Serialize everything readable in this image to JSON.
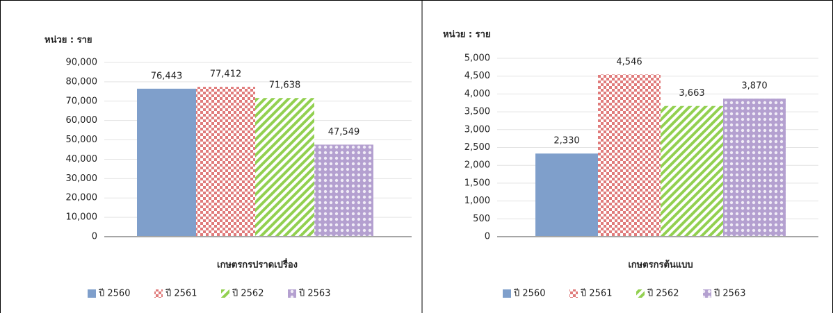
{
  "chart_data": [
    {
      "type": "bar",
      "unit_label": "หน่วย : ราย",
      "categories": [
        "เกษตรกรปราดเปรื่อง"
      ],
      "series": [
        {
          "name": "ปี 2560",
          "color": "#7f9fcb",
          "values": [
            76443
          ],
          "value_labels": [
            "76,443"
          ]
        },
        {
          "name": "ปี 2561",
          "color": "#e07b7b",
          "values": [
            77412
          ],
          "value_labels": [
            "77,412"
          ]
        },
        {
          "name": "ปี 2562",
          "color": "#92d050",
          "values": [
            71638
          ],
          "value_labels": [
            "71,638"
          ]
        },
        {
          "name": "ปี 2563",
          "color": "#b4a0d0",
          "values": [
            47549
          ],
          "value_labels": [
            "47,549"
          ]
        }
      ],
      "ylim": [
        0,
        90000
      ],
      "yticks": [
        0,
        {
          "value": 10000,
          "label": "10,000"
        },
        {
          "value": 20000,
          "label": "20,000"
        },
        {
          "value": 30000,
          "label": "30,000"
        },
        {
          "value": 40000,
          "label": "40,000"
        },
        {
          "value": 50000,
          "label": "50,000"
        },
        {
          "value": 60000,
          "label": "60,000"
        },
        {
          "value": 70000,
          "label": "70,000"
        },
        {
          "value": 80000,
          "label": "80,000"
        },
        {
          "value": 90000,
          "label": "90,000"
        }
      ],
      "grid": true
    },
    {
      "type": "bar",
      "unit_label": "หน่วย : ราย",
      "categories": [
        "เกษตรกรต้นแบบ"
      ],
      "series": [
        {
          "name": "ปี 2560",
          "color": "#7f9fcb",
          "values": [
            2330
          ],
          "value_labels": [
            "2,330"
          ]
        },
        {
          "name": "ปี 2561",
          "color": "#e07b7b",
          "values": [
            4546
          ],
          "value_labels": [
            "4,546"
          ]
        },
        {
          "name": "ปี 2562",
          "color": "#92d050",
          "values": [
            3663
          ],
          "value_labels": [
            "3,663"
          ]
        },
        {
          "name": "ปี 2563",
          "color": "#b4a0d0",
          "values": [
            3870
          ],
          "value_labels": [
            "3,870"
          ]
        }
      ],
      "ylim": [
        0,
        5000
      ],
      "yticks": [
        0,
        500,
        {
          "value": 1000,
          "label": "1,000"
        },
        {
          "value": 1500,
          "label": "1,500"
        },
        {
          "value": 2000,
          "label": "2,000"
        },
        {
          "value": 2500,
          "label": "2,500"
        },
        {
          "value": 3000,
          "label": "3,000"
        },
        {
          "value": 3500,
          "label": "3,500"
        },
        {
          "value": 4000,
          "label": "4,000"
        },
        {
          "value": 4500,
          "label": "4,500"
        },
        {
          "value": 5000,
          "label": "5,000"
        }
      ],
      "grid": true
    }
  ]
}
